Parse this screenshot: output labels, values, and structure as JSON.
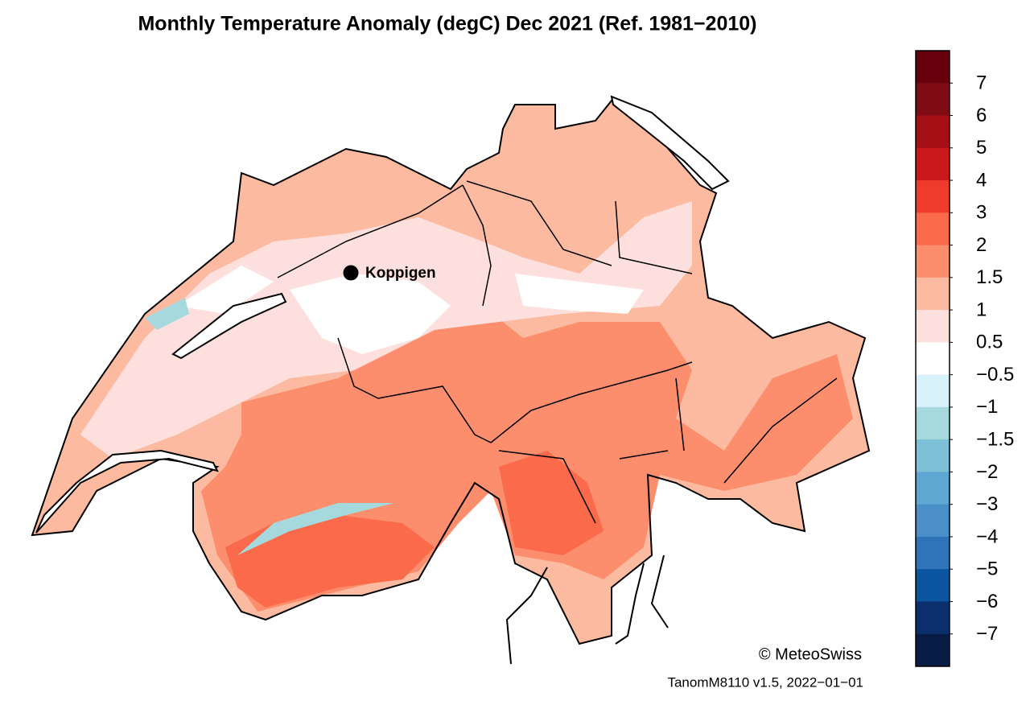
{
  "title": "Monthly Temperature Anomaly (degC) Dec 2021  (Ref. 1981−2010)",
  "map": {
    "marker_label": "Koppigen"
  },
  "colorbar": {
    "colors": [
      "#67000d",
      "#7f0c14",
      "#a50f15",
      "#cb181d",
      "#ef3b2c",
      "#fb6a4a",
      "#fc8d6d",
      "#fcbba1",
      "#fde0dd",
      "#ffffff",
      "#d8f2fa",
      "#a6d9dd",
      "#7ec0d8",
      "#5ea7d2",
      "#4a8fc8",
      "#2f74b8",
      "#0b55a0",
      "#0a2f6c",
      "#081d45"
    ],
    "ticks": [
      7,
      6,
      5,
      4,
      3,
      2,
      1.5,
      1,
      0.5,
      {
        "value": -0.5,
        "label": "−0.5"
      },
      {
        "value": -1,
        "label": "−1"
      },
      {
        "value": -1.5,
        "label": "−1.5"
      },
      {
        "value": -2,
        "label": "−2"
      },
      {
        "value": -3,
        "label": "−3"
      },
      {
        "value": -4,
        "label": "−4"
      },
      {
        "value": -5,
        "label": "−5"
      },
      {
        "value": -6,
        "label": "−6"
      },
      {
        "value": -7,
        "label": "−7"
      }
    ]
  },
  "credit": "© MeteoSwiss",
  "version": "TanomM8110 v1.5, 2022−01−01"
}
